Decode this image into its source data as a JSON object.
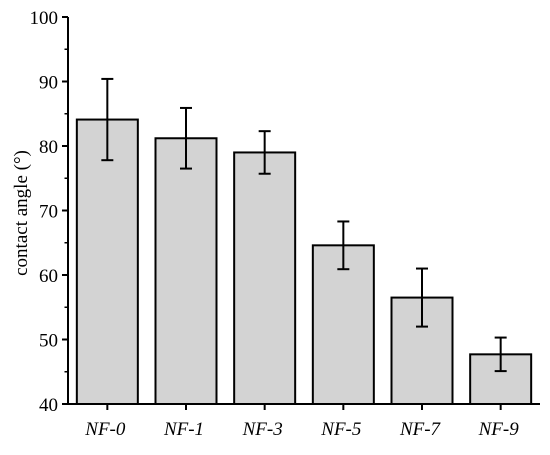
{
  "chart_data": {
    "type": "bar",
    "title": "",
    "xlabel": "",
    "ylabel": "contact angle (°)",
    "categories": [
      "NF-0",
      "NF-1",
      "NF-3",
      "NF-5",
      "NF-7",
      "NF-9"
    ],
    "values": [
      84.1,
      81.2,
      79.0,
      64.6,
      56.5,
      47.7
    ],
    "errors": [
      6.3,
      4.7,
      3.3,
      3.7,
      4.5,
      2.6
    ],
    "ylim": [
      40,
      100
    ],
    "yticks": [
      40,
      50,
      60,
      70,
      80,
      90,
      100
    ],
    "grid": false,
    "bar_color": "#d3d3d3",
    "edge_color": "#000000"
  }
}
